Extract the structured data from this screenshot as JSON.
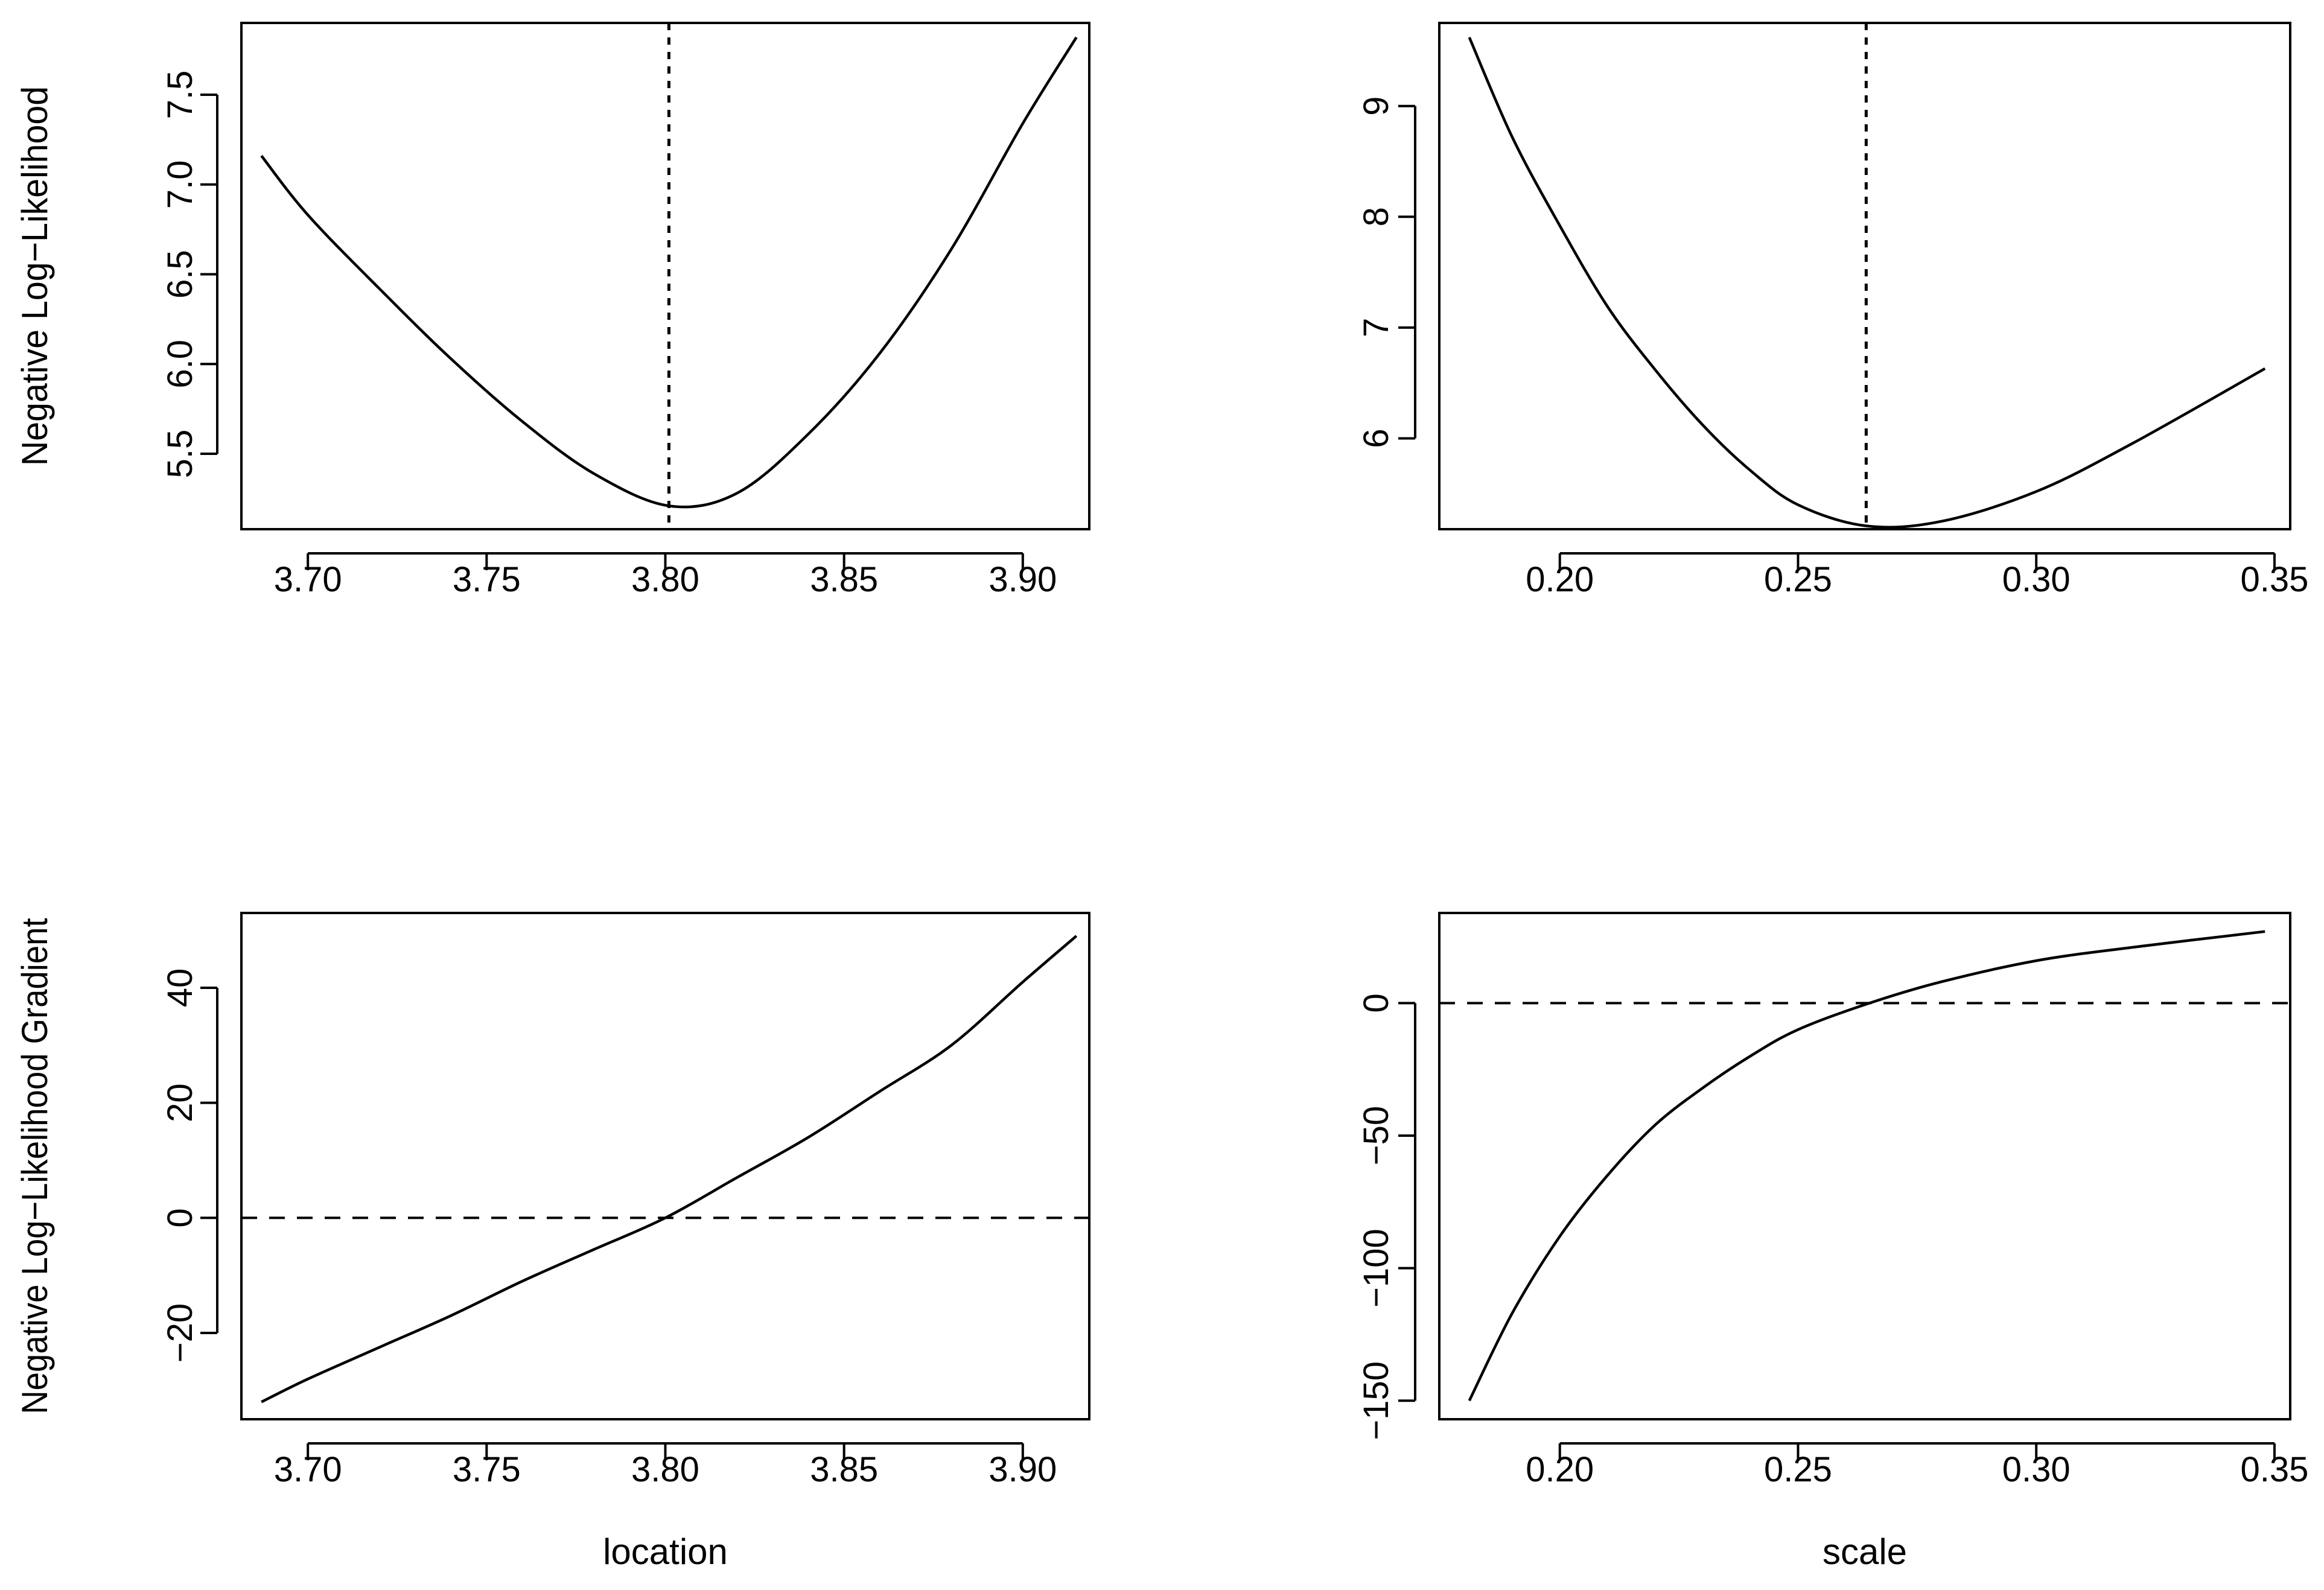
{
  "chart_data": [
    {
      "type": "line",
      "xlabel": "",
      "ylabel": "Negative Log−Likelihood",
      "xlim": [
        3.6814,
        3.9186
      ],
      "ylim": [
        5.08,
        7.9
      ],
      "xticks": [
        3.7,
        3.75,
        3.8,
        3.85,
        3.9
      ],
      "xtick_labels": [
        "3.70",
        "3.75",
        "3.80",
        "3.85",
        "3.90"
      ],
      "yticks": [
        5.5,
        6.0,
        6.5,
        7.0,
        7.5
      ],
      "ytick_labels": [
        "5.5",
        "6.0",
        "6.5",
        "7.0",
        "7.5"
      ],
      "vline": 3.801,
      "series": [
        {
          "x": [
            3.687,
            3.7,
            3.72,
            3.74,
            3.76,
            3.78,
            3.801,
            3.82,
            3.84,
            3.86,
            3.88,
            3.9,
            3.915
          ],
          "y": [
            7.16,
            6.83,
            6.42,
            6.03,
            5.68,
            5.39,
            5.21,
            5.28,
            5.61,
            6.06,
            6.64,
            7.34,
            7.82
          ]
        }
      ]
    },
    {
      "type": "line",
      "xlabel": "",
      "ylabel": "",
      "xlim": [
        0.1747,
        0.3533
      ],
      "ylim": [
        5.18,
        9.75
      ],
      "xticks": [
        0.2,
        0.25,
        0.3,
        0.35
      ],
      "xtick_labels": [
        "0.20",
        "0.25",
        "0.30",
        "0.35"
      ],
      "yticks": [
        6,
        7,
        8,
        9
      ],
      "ytick_labels": [
        "6",
        "7",
        "8",
        "9"
      ],
      "vline": 0.2643,
      "series": [
        {
          "x": [
            0.181,
            0.19,
            0.2,
            0.21,
            0.22,
            0.23,
            0.24,
            0.25,
            0.2643,
            0.28,
            0.3,
            0.32,
            0.348
          ],
          "y": [
            9.62,
            8.72,
            7.92,
            7.19,
            6.62,
            6.12,
            5.71,
            5.4,
            5.21,
            5.25,
            5.52,
            5.95,
            6.63
          ]
        }
      ]
    },
    {
      "type": "line",
      "xlabel": "location",
      "ylabel": "Negative Log−Likelihood Gradient",
      "xlim": [
        3.6814,
        3.9186
      ],
      "ylim": [
        -35,
        53
      ],
      "xticks": [
        3.7,
        3.75,
        3.8,
        3.85,
        3.9
      ],
      "xtick_labels": [
        "3.70",
        "3.75",
        "3.80",
        "3.85",
        "3.90"
      ],
      "yticks": [
        -20,
        0,
        20,
        40
      ],
      "ytick_labels": [
        "−20",
        "0",
        "20",
        "40"
      ],
      "hline": 0,
      "series": [
        {
          "x": [
            3.687,
            3.7,
            3.72,
            3.74,
            3.76,
            3.78,
            3.8,
            3.82,
            3.84,
            3.86,
            3.88,
            3.9,
            3.915
          ],
          "y": [
            -32,
            -28,
            -22.5,
            -17,
            -11,
            -5.5,
            0,
            7,
            14,
            22,
            30,
            41,
            49
          ]
        }
      ]
    },
    {
      "type": "line",
      "xlabel": "scale",
      "ylabel": "",
      "xlim": [
        0.1747,
        0.3533
      ],
      "ylim": [
        -157,
        34
      ],
      "xticks": [
        0.2,
        0.25,
        0.3,
        0.35
      ],
      "xtick_labels": [
        "0.20",
        "0.25",
        "0.30",
        "0.35"
      ],
      "yticks": [
        -150,
        -100,
        -50,
        0
      ],
      "ytick_labels": [
        "−150",
        "−100",
        "−50",
        "0"
      ],
      "hline": 0,
      "series": [
        {
          "x": [
            0.181,
            0.19,
            0.2,
            0.21,
            0.22,
            0.23,
            0.24,
            0.25,
            0.265,
            0.28,
            0.3,
            0.32,
            0.348
          ],
          "y": [
            -150,
            -117,
            -88,
            -65,
            -46,
            -32,
            -20,
            -10,
            0,
            8,
            16,
            21,
            27
          ]
        }
      ]
    }
  ]
}
